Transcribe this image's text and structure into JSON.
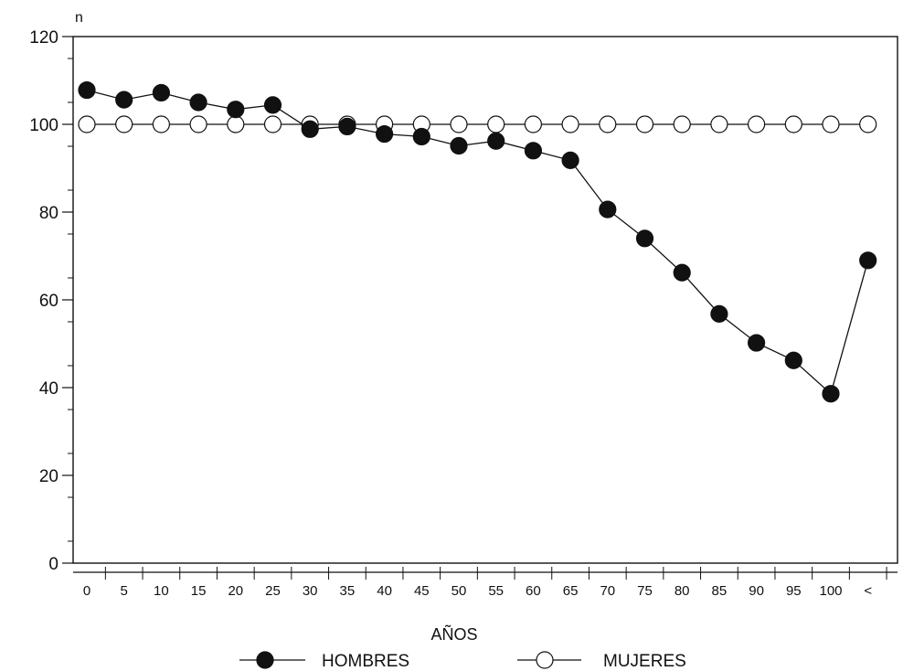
{
  "chart_data": {
    "type": "line",
    "title": "",
    "xlabel": "AÑOS",
    "ylabel": "n",
    "categories": [
      "0",
      "5",
      "10",
      "15",
      "20",
      "25",
      "30",
      "35",
      "40",
      "45",
      "50",
      "55",
      "60",
      "65",
      "70",
      "75",
      "80",
      "85",
      "90",
      "95",
      "100",
      "<"
    ],
    "ylim": [
      0,
      120
    ],
    "yticks": [
      "0",
      "20",
      "40",
      "60",
      "80",
      "100",
      "120"
    ],
    "grid": false,
    "legend_position": "bottom",
    "series": [
      {
        "name": "HOMBRES",
        "marker": "filled-circle",
        "color": "#111111",
        "values": [
          107.8,
          105.6,
          107.2,
          105.0,
          103.4,
          104.4,
          98.9,
          99.5,
          97.8,
          97.2,
          95.1,
          96.2,
          94.0,
          91.8,
          80.6,
          74.0,
          66.2,
          56.8,
          50.2,
          46.2,
          38.6,
          69.0
        ]
      },
      {
        "name": "MUJERES",
        "marker": "open-circle",
        "color": "#111111",
        "values": [
          100,
          100,
          100,
          100,
          100,
          100,
          100,
          100,
          100,
          100,
          100,
          100,
          100,
          100,
          100,
          100,
          100,
          100,
          100,
          100,
          100,
          100
        ]
      }
    ]
  }
}
